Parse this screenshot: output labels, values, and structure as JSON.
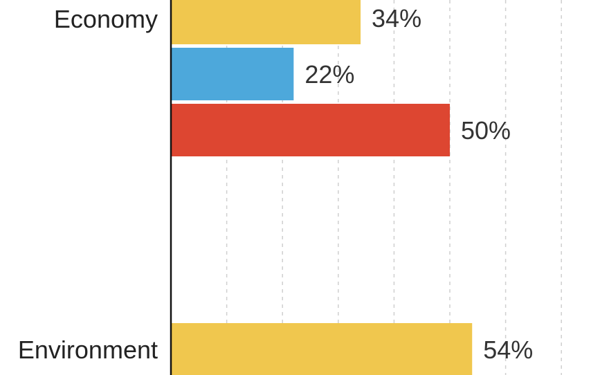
{
  "chart_data": {
    "type": "bar",
    "orientation": "horizontal",
    "grid": true,
    "categories": [
      "Economy",
      "Environment"
    ],
    "series": [
      {
        "color": "#F0C74E",
        "values": [
          34,
          54
        ],
        "labels": [
          "34%",
          "54%"
        ]
      },
      {
        "color": "#4DA8DB",
        "values": [
          22,
          null
        ],
        "labels": [
          "22%",
          ""
        ]
      },
      {
        "color": "#DD4631",
        "values": [
          50,
          null
        ],
        "labels": [
          "50%",
          ""
        ]
      }
    ],
    "xlim": [
      0,
      80
    ],
    "value_suffix": "%"
  }
}
